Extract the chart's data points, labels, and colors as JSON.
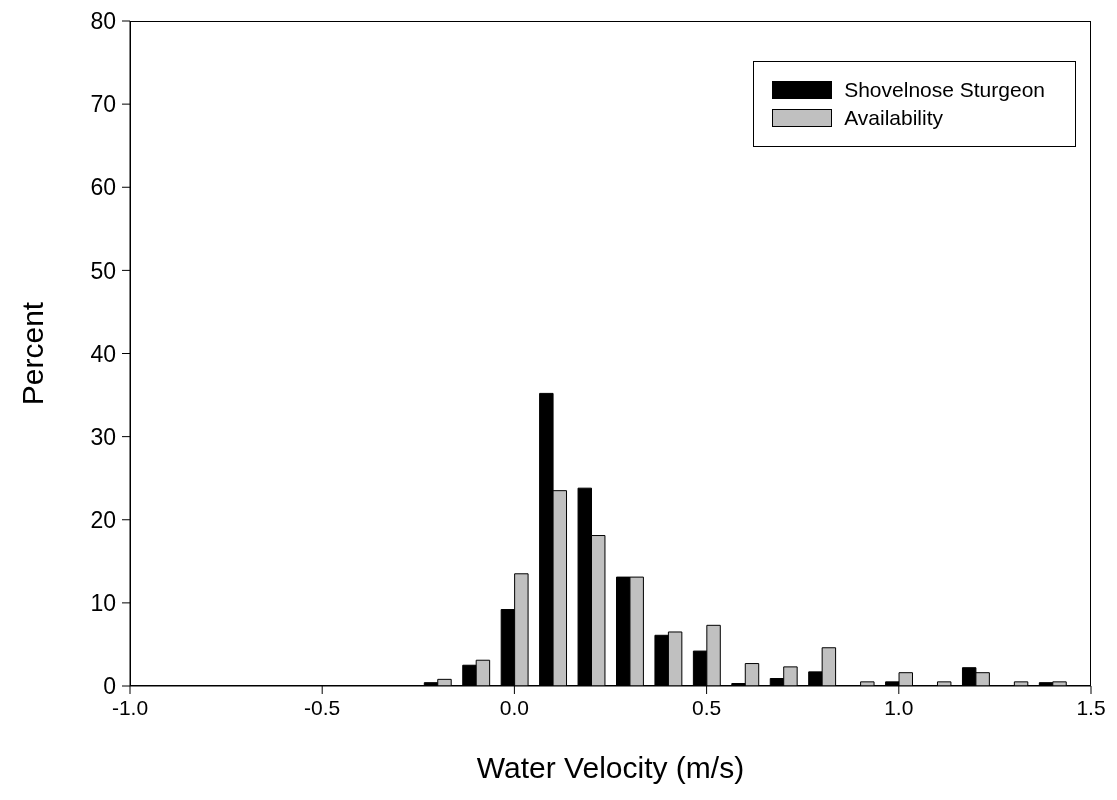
{
  "chart_data": {
    "type": "bar",
    "xlabel": "Water Velocity (m/s)",
    "ylabel": "Percent",
    "x": [
      -0.2,
      -0.1,
      0.0,
      0.1,
      0.2,
      0.3,
      0.4,
      0.5,
      0.6,
      0.7,
      0.8,
      0.9,
      1.0,
      1.1,
      1.2,
      1.3,
      1.4
    ],
    "series": [
      {
        "name": "Shovelnose Sturgeon",
        "color": "#000000",
        "values": [
          0.4,
          2.5,
          9.2,
          35.2,
          23.8,
          13.1,
          6.1,
          4.2,
          0.3,
          0.9,
          1.7,
          null,
          0.5,
          null,
          2.2,
          null,
          0.4
        ]
      },
      {
        "name": "Availability",
        "color": "#c0c0c0",
        "values": [
          0.8,
          3.1,
          13.5,
          23.5,
          18.1,
          13.1,
          6.5,
          7.3,
          2.7,
          2.3,
          4.6,
          0.5,
          1.6,
          0.5,
          1.6,
          0.5,
          0.5
        ]
      }
    ],
    "xlim": [
      -1,
      1.5
    ],
    "xticks": [
      {
        "value": -1,
        "label": "-1.0"
      },
      {
        "value": -0.5,
        "label": "-0.5"
      },
      {
        "value": 0,
        "label": "0.0"
      },
      {
        "value": 0.5,
        "label": "0.5"
      },
      {
        "value": 1,
        "label": "1.0"
      },
      {
        "value": 1.5,
        "label": "1.5"
      }
    ],
    "ylim": [
      0,
      80
    ],
    "yticks": [
      0,
      10,
      20,
      30,
      40,
      50,
      60,
      70,
      80
    ],
    "legend": "top right",
    "grid": false
  }
}
